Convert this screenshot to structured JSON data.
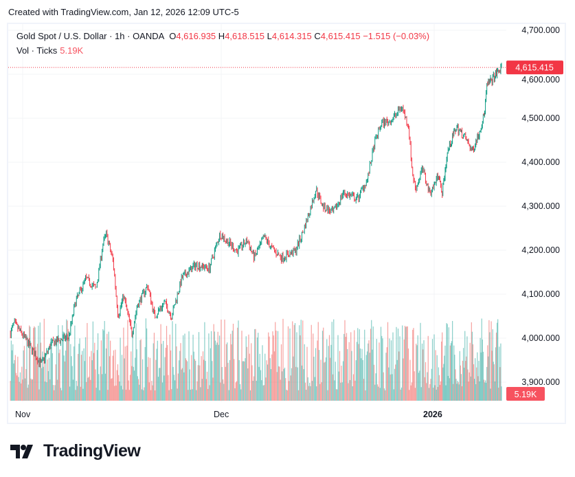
{
  "header": {
    "created": "Created with TradingView.com, Jan 12, 2026 12:09 UTC-5"
  },
  "legend": {
    "symbol": "Gold Spot / U.S. Dollar · 1h · OANDA",
    "o_label": "O",
    "open": "4,616.935",
    "h_label": "H",
    "high": "4,618.515",
    "l_label": "L",
    "low": "4,614.315",
    "c_label": "C",
    "close": "4,615.415",
    "change": "−1.515 (−0.03%)"
  },
  "volume_legend": {
    "label": "Vol · Ticks",
    "value": "5.19K"
  },
  "logo": {
    "text": "TradingView"
  },
  "colors": {
    "up": "#089981",
    "down": "#f23645",
    "vol_up": "#26a69a",
    "vol_down": "#ef5350",
    "last_price": "#f23645",
    "vol_badge": "#f7525f"
  },
  "chart_data": {
    "type": "candlestick",
    "title": "Gold Spot / U.S. Dollar · 1h · OANDA",
    "ylim": [
      3860,
      4720
    ],
    "y_ticks": [
      "4,700.000",
      "4,600.000",
      "4,500.000",
      "4,400.000",
      "4,300.000",
      "4,200.000",
      "4,100.000",
      "4,000.000",
      "3,900.000"
    ],
    "y_tick_values": [
      4700,
      4600,
      4500,
      4400,
      4300,
      4200,
      4100,
      4000,
      3900
    ],
    "x_ticks": [
      {
        "label": "Nov",
        "date": "2025-11-01"
      },
      {
        "label": "Dec",
        "date": "2025-12-01"
      },
      {
        "label": "2026",
        "date": "2026-01-01",
        "bold": true
      }
    ],
    "last_price": 4615.415,
    "last_price_label": "4,615.415",
    "last_volume_label": "5.19K",
    "grid": true,
    "approx_close_path": [
      [
        "2025-10-30T03:00",
        4011
      ],
      [
        "2025-10-30T16:00",
        4034
      ],
      [
        "2025-11-01T05:00",
        4003
      ],
      [
        "2025-11-03T19:00",
        3940
      ],
      [
        "2025-11-05T08:00",
        3988
      ],
      [
        "2025-11-07T23:00",
        4003
      ],
      [
        "2025-11-08T23:00",
        4081
      ],
      [
        "2025-11-10T13:00",
        4136
      ],
      [
        "2025-11-12T02:00",
        4112
      ],
      [
        "2025-11-13T03:00",
        4214
      ],
      [
        "2025-11-13T15:00",
        4237
      ],
      [
        "2025-11-14T16:00",
        4175
      ],
      [
        "2025-11-15T10:00",
        4050
      ],
      [
        "2025-11-16T06:00",
        4097
      ],
      [
        "2025-11-17T12:00",
        4011
      ],
      [
        "2025-11-18T07:00",
        4073
      ],
      [
        "2025-11-19T21:00",
        4120
      ],
      [
        "2025-11-20T22:00",
        4050
      ],
      [
        "2025-11-22T11:00",
        4081
      ],
      [
        "2025-11-23T12:00",
        4050
      ],
      [
        "2025-11-25T01:00",
        4136
      ],
      [
        "2025-11-27T03:00",
        4167
      ],
      [
        "2025-11-29T05:00",
        4159
      ],
      [
        "2025-11-30T19:00",
        4237
      ],
      [
        "2025-12-01T19:00",
        4222
      ],
      [
        "2025-12-03T07:00",
        4198
      ],
      [
        "2025-12-04T19:00",
        4222
      ],
      [
        "2025-12-05T19:00",
        4183
      ],
      [
        "2025-12-07T07:00",
        4230
      ],
      [
        "2025-12-08T07:00",
        4206
      ],
      [
        "2025-12-09T19:00",
        4183
      ],
      [
        "2025-12-11T19:00",
        4198
      ],
      [
        "2025-12-12T19:00",
        4237
      ],
      [
        "2025-12-13T19:00",
        4284
      ],
      [
        "2025-12-14T19:00",
        4339
      ],
      [
        "2025-12-15T19:00",
        4300
      ],
      [
        "2025-12-17T07:00",
        4284
      ],
      [
        "2025-12-18T19:00",
        4331
      ],
      [
        "2025-12-20T19:00",
        4316
      ],
      [
        "2025-12-22T07:00",
        4362
      ],
      [
        "2025-12-23T07:00",
        4441
      ],
      [
        "2025-12-24T07:00",
        4488
      ],
      [
        "2025-12-25T19:00",
        4495
      ],
      [
        "2025-12-27T07:00",
        4527
      ],
      [
        "2025-12-28T07:00",
        4480
      ],
      [
        "2025-12-28T19:00",
        4378
      ],
      [
        "2025-12-29T07:00",
        4339
      ],
      [
        "2025-12-30T07:00",
        4386
      ],
      [
        "2025-12-31T07:00",
        4331
      ],
      [
        "2026-01-01T00:00",
        4347
      ],
      [
        "2026-01-01T19:00",
        4378
      ],
      [
        "2026-01-02T07:00",
        4323
      ],
      [
        "2026-01-03T07:00",
        4425
      ],
      [
        "2026-01-04T19:00",
        4480
      ],
      [
        "2026-01-06T07:00",
        4456
      ],
      [
        "2026-01-07T12:00",
        4425
      ],
      [
        "2026-01-08T19:00",
        4472
      ],
      [
        "2026-01-09T14:00",
        4511
      ],
      [
        "2026-01-10T00:00",
        4573
      ],
      [
        "2026-01-12T12:00",
        4615.415
      ]
    ]
  }
}
